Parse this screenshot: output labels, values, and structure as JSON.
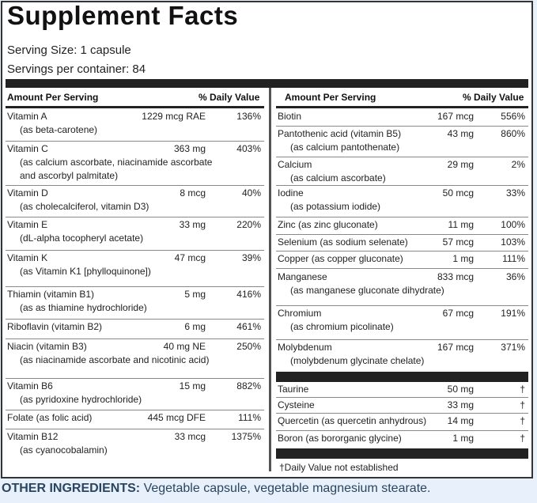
{
  "title": "Supplement Facts",
  "serving_size": "Serving Size: 1 capsule",
  "servings_per_container": "Servings per container: 84",
  "header": {
    "amount": "Amount Per Serving",
    "dv": "% Daily Value"
  },
  "left": [
    {
      "l1": "Vitamin A",
      "l2": "(as beta-carotene)",
      "amt": "1229 mcg RAE",
      "dv": "136%"
    },
    {
      "l1": "Vitamin C",
      "l2": "(as calcium ascorbate, niacinamide ascorbate",
      "l3": "and ascorbyl palmitate)",
      "amt": "363 mg",
      "dv": "403%"
    },
    {
      "l1": "Vitamin D",
      "l2": "(as cholecalciferol, vitamin D3)",
      "amt": "8 mcg",
      "dv": "40%"
    },
    {
      "l1": "Vitamin E",
      "l2": "(dL-alpha tocopheryl acetate)",
      "amt": "33 mg",
      "dv": "220%"
    },
    {
      "l1": "Vitamin K",
      "l2": "(as Vitamin K1 [phylloquinone])",
      "amt": "47 mcg",
      "dv": "39%"
    },
    {
      "l1": "Thiamin (vitamin B1)",
      "l2": "(as as thiamine hydrochloride)",
      "amt": "5 mg",
      "dv": "416%"
    },
    {
      "l1": "Riboflavin (vitamin B2)",
      "amt": "6 mg",
      "dv": "461%"
    },
    {
      "l1": "Niacin (vitamin B3)",
      "l2": "(as niacinamide ascorbate and nicotinic acid)",
      "amt": "40 mg NE",
      "dv": "250%"
    },
    {
      "l1": "Vitamin B6",
      "l2": "(as pyridoxine hydrochloride)",
      "amt": "15 mg",
      "dv": "882%"
    },
    {
      "l1": "Folate (as folic acid)",
      "amt": "445 mcg DFE",
      "dv": "111%"
    },
    {
      "l1": "Vitamin B12",
      "l2": "(as cyanocobalamin)",
      "amt": "33 mcg",
      "dv": "1375%"
    }
  ],
  "right": [
    {
      "l1": "Biotin",
      "amt": "167 mcg",
      "dv": "556%"
    },
    {
      "l1": "Pantothenic acid (vitamin B5)",
      "l2": "(as calcium pantothenate)",
      "amt": "43 mg",
      "dv": "860%"
    },
    {
      "l1": "Calcium",
      "l2": "(as calcium ascorbate)",
      "amt": "29 mg",
      "dv": "2%"
    },
    {
      "l1": "Iodine",
      "l2": "(as potassium iodide)",
      "amt": "50 mcg",
      "dv": "33%"
    },
    {
      "l1": "Zinc (as zinc gluconate)",
      "amt": "11 mg",
      "dv": "100%"
    },
    {
      "l1": "Selenium (as sodium selenate)",
      "amt": "57 mcg",
      "dv": "103%"
    },
    {
      "l1": "Copper (as copper gluconate)",
      "amt": "1 mg",
      "dv": "111%"
    },
    {
      "l1": "Manganese",
      "l2": "(as manganese gluconate dihydrate)",
      "amt": "833 mcg",
      "dv": "36%"
    },
    {
      "l1": "Chromium",
      "l2": "(as chromium picolinate)",
      "amt": "67 mcg",
      "dv": "191%"
    },
    {
      "l1": "Molybdenum",
      "l2": "(molybdenum glycinate chelate)",
      "amt": "167 mcg",
      "dv": "371%"
    }
  ],
  "right2": [
    {
      "l1": "Taurine",
      "amt": "50 mg",
      "dv": "†"
    },
    {
      "l1": "Cysteine",
      "amt": "33 mg",
      "dv": "†"
    },
    {
      "l1": "Quercetin (as quercetin anhydrous)",
      "amt": "14 mg",
      "dv": "†"
    },
    {
      "l1": "Boron (as bororganic glycine)",
      "amt": "1 mg",
      "dv": "†"
    }
  ],
  "footnote": "†Daily Value not established",
  "other_label": "OTHER INGREDIENTS:",
  "other_text": " Vegetable capsule, vegetable magnesium stearate."
}
